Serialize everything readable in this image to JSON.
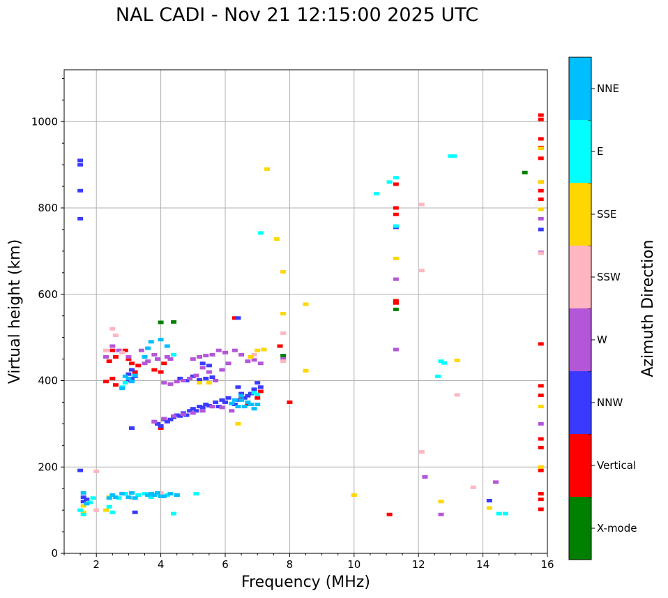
{
  "chart_data": {
    "type": "scatter",
    "title": "NAL CADI - Nov 21 12:15:00 2025 UTC",
    "xlabel": "Frequency (MHz)",
    "ylabel": "Virtual height (km)",
    "xlim": [
      1,
      16
    ],
    "ylim": [
      0,
      1120
    ],
    "xticks": [
      2,
      4,
      6,
      8,
      10,
      12,
      14,
      16
    ],
    "yticks": [
      0,
      200,
      400,
      600,
      800,
      1000
    ],
    "grid": true,
    "colorbar": {
      "label": "Azimuth Direction",
      "categories": [
        {
          "name": "X-mode",
          "color": "#008000"
        },
        {
          "name": "Vertical",
          "color": "#ff0000"
        },
        {
          "name": "NNW",
          "color": "#3a3aff"
        },
        {
          "name": "W",
          "color": "#b456d8"
        },
        {
          "name": "SSW",
          "color": "#ffb6c1"
        },
        {
          "name": "SSE",
          "color": "#ffd700"
        },
        {
          "name": "E",
          "color": "#00ffff"
        },
        {
          "name": "NNE",
          "color": "#00bfff"
        }
      ]
    },
    "series": [
      {
        "name": "X-mode",
        "points": [
          [
            4.0,
            535
          ],
          [
            4.4,
            536
          ],
          [
            7.8,
            458
          ],
          [
            15.3,
            882
          ],
          [
            11.3,
            565
          ]
        ]
      },
      {
        "name": "Vertical",
        "points": [
          [
            2.3,
            398
          ],
          [
            2.4,
            445
          ],
          [
            2.5,
            470
          ],
          [
            2.5,
            405
          ],
          [
            2.6,
            455
          ],
          [
            2.6,
            390
          ],
          [
            2.9,
            470
          ],
          [
            3.0,
            450
          ],
          [
            3.1,
            440
          ],
          [
            3.2,
            420
          ],
          [
            3.3,
            435
          ],
          [
            3.8,
            425
          ],
          [
            4.0,
            420
          ],
          [
            4.1,
            440
          ],
          [
            3.9,
            300
          ],
          [
            4.0,
            290
          ],
          [
            6.3,
            545
          ],
          [
            6.5,
            360
          ],
          [
            6.7,
            345
          ],
          [
            7.0,
            360
          ],
          [
            7.1,
            375
          ],
          [
            7.7,
            480
          ],
          [
            8.0,
            350
          ],
          [
            11.3,
            585
          ],
          [
            11.3,
            580
          ],
          [
            11.3,
            855
          ],
          [
            11.3,
            800
          ],
          [
            11.3,
            785
          ],
          [
            11.3,
            580
          ],
          [
            11.1,
            90
          ],
          [
            15.8,
            1015
          ],
          [
            15.8,
            1005
          ],
          [
            15.8,
            960
          ],
          [
            15.8,
            940
          ],
          [
            15.8,
            915
          ],
          [
            15.8,
            860
          ],
          [
            15.8,
            840
          ],
          [
            15.8,
            820
          ],
          [
            15.8,
            485
          ],
          [
            15.8,
            388
          ],
          [
            15.8,
            366
          ],
          [
            15.8,
            265
          ],
          [
            15.8,
            245
          ],
          [
            15.8,
            192
          ],
          [
            15.8,
            138
          ],
          [
            15.8,
            125
          ],
          [
            15.8,
            102
          ]
        ]
      },
      {
        "name": "NNW",
        "points": [
          [
            1.5,
            910
          ],
          [
            1.5,
            900
          ],
          [
            1.5,
            840
          ],
          [
            1.5,
            775
          ],
          [
            1.5,
            192
          ],
          [
            1.6,
            130
          ],
          [
            1.7,
            125
          ],
          [
            1.6,
            120
          ],
          [
            3.0,
            415
          ],
          [
            3.1,
            425
          ],
          [
            3.1,
            405
          ],
          [
            3.0,
            400
          ],
          [
            3.2,
            410
          ],
          [
            3.1,
            290
          ],
          [
            3.2,
            95
          ],
          [
            3.8,
            305
          ],
          [
            3.9,
            300
          ],
          [
            4.0,
            295
          ],
          [
            4.1,
            310
          ],
          [
            4.2,
            305
          ],
          [
            4.3,
            310
          ],
          [
            4.4,
            315
          ],
          [
            4.5,
            320
          ],
          [
            4.6,
            318
          ],
          [
            4.7,
            325
          ],
          [
            4.8,
            320
          ],
          [
            4.9,
            330
          ],
          [
            5.0,
            335
          ],
          [
            5.1,
            330
          ],
          [
            5.2,
            340
          ],
          [
            5.3,
            338
          ],
          [
            5.4,
            345
          ],
          [
            5.5,
            342
          ],
          [
            5.6,
            340
          ],
          [
            5.7,
            350
          ],
          [
            5.8,
            340
          ],
          [
            5.9,
            355
          ],
          [
            6.0,
            350
          ],
          [
            6.1,
            360
          ],
          [
            6.3,
            345
          ],
          [
            6.4,
            355
          ],
          [
            6.5,
            370
          ],
          [
            6.6,
            360
          ],
          [
            6.7,
            365
          ],
          [
            6.8,
            370
          ],
          [
            6.9,
            380
          ],
          [
            7.0,
            395
          ],
          [
            7.1,
            385
          ],
          [
            4.6,
            405
          ],
          [
            4.8,
            400
          ],
          [
            5.0,
            410
          ],
          [
            5.2,
            402
          ],
          [
            5.4,
            405
          ],
          [
            5.6,
            408
          ],
          [
            5.3,
            440
          ],
          [
            5.5,
            435
          ],
          [
            6.4,
            545
          ],
          [
            6.4,
            385
          ],
          [
            11.3,
            755
          ],
          [
            15.8,
            750
          ],
          [
            14.2,
            122
          ],
          [
            4.0,
            135
          ],
          [
            3.7,
            138
          ],
          [
            4.5,
            135
          ]
        ]
      },
      {
        "name": "W",
        "points": [
          [
            2.3,
            455
          ],
          [
            2.5,
            480
          ],
          [
            2.7,
            470
          ],
          [
            3.0,
            455
          ],
          [
            3.4,
            470
          ],
          [
            3.5,
            440
          ],
          [
            3.6,
            445
          ],
          [
            3.8,
            460
          ],
          [
            3.9,
            450
          ],
          [
            4.2,
            455
          ],
          [
            4.3,
            450
          ],
          [
            4.1,
            395
          ],
          [
            4.3,
            392
          ],
          [
            4.5,
            398
          ],
          [
            4.7,
            400
          ],
          [
            4.9,
            405
          ],
          [
            5.1,
            412
          ],
          [
            5.3,
            430
          ],
          [
            5.5,
            420
          ],
          [
            5.7,
            400
          ],
          [
            5.9,
            425
          ],
          [
            6.1,
            440
          ],
          [
            6.3,
            470
          ],
          [
            6.5,
            460
          ],
          [
            6.7,
            445
          ],
          [
            6.9,
            448
          ],
          [
            7.1,
            440
          ],
          [
            5.2,
            455
          ],
          [
            5.4,
            458
          ],
          [
            5.0,
            450
          ],
          [
            5.6,
            460
          ],
          [
            5.8,
            470
          ],
          [
            6.0,
            465
          ],
          [
            3.8,
            305
          ],
          [
            4.1,
            312
          ],
          [
            4.4,
            318
          ],
          [
            4.7,
            322
          ],
          [
            5.0,
            325
          ],
          [
            5.3,
            330
          ],
          [
            5.6,
            340
          ],
          [
            5.9,
            338
          ],
          [
            6.2,
            330
          ],
          [
            7.8,
            450
          ],
          [
            11.3,
            635
          ],
          [
            11.3,
            472
          ],
          [
            12.2,
            177
          ],
          [
            12.7,
            90
          ],
          [
            14.4,
            165
          ],
          [
            15.8,
            775
          ],
          [
            15.8,
            697
          ],
          [
            15.8,
            300
          ]
        ]
      },
      {
        "name": "SSW",
        "points": [
          [
            2.5,
            520
          ],
          [
            2.6,
            505
          ],
          [
            2.3,
            470
          ],
          [
            2.8,
            465
          ],
          [
            6.9,
            460
          ],
          [
            7.8,
            510
          ],
          [
            7.8,
            445
          ],
          [
            12.1,
            808
          ],
          [
            12.1,
            655
          ],
          [
            12.1,
            235
          ],
          [
            13.2,
            367
          ],
          [
            13.7,
            153
          ],
          [
            15.8,
            695
          ],
          [
            3.1,
            128
          ],
          [
            3.3,
            135
          ],
          [
            4.0,
            140
          ],
          [
            2.0,
            190
          ],
          [
            2.0,
            100
          ]
        ]
      },
      {
        "name": "SSE",
        "points": [
          [
            1.6,
            95
          ],
          [
            1.6,
            110
          ],
          [
            2.3,
            100
          ],
          [
            2.4,
            130
          ],
          [
            7.3,
            890
          ],
          [
            7.6,
            728
          ],
          [
            7.8,
            652
          ],
          [
            7.8,
            555
          ],
          [
            8.5,
            577
          ],
          [
            8.5,
            423
          ],
          [
            6.8,
            455
          ],
          [
            7.0,
            470
          ],
          [
            7.2,
            472
          ],
          [
            6.4,
            300
          ],
          [
            5.2,
            395
          ],
          [
            5.5,
            395
          ],
          [
            10.0,
            135
          ],
          [
            11.3,
            683
          ],
          [
            12.7,
            120
          ],
          [
            13.2,
            447
          ],
          [
            14.2,
            105
          ],
          [
            15.8,
            938
          ],
          [
            15.8,
            860
          ],
          [
            15.8,
            797
          ],
          [
            15.8,
            340
          ],
          [
            15.8,
            200
          ]
        ]
      },
      {
        "name": "E",
        "points": [
          [
            1.5,
            100
          ],
          [
            1.6,
            90
          ],
          [
            1.8,
            118
          ],
          [
            1.9,
            128
          ],
          [
            2.4,
            108
          ],
          [
            2.5,
            95
          ],
          [
            2.7,
            128
          ],
          [
            2.9,
            138
          ],
          [
            3.3,
            135
          ],
          [
            3.5,
            138
          ],
          [
            3.7,
            130
          ],
          [
            4.2,
            135
          ],
          [
            4.4,
            92
          ],
          [
            5.1,
            138
          ],
          [
            7.1,
            742
          ],
          [
            10.7,
            833
          ],
          [
            11.1,
            860
          ],
          [
            11.3,
            870
          ],
          [
            11.3,
            758
          ],
          [
            12.6,
            410
          ],
          [
            12.7,
            445
          ],
          [
            12.8,
            441
          ],
          [
            13.0,
            920
          ],
          [
            13.1,
            920
          ],
          [
            14.5,
            92
          ],
          [
            14.7,
            92
          ],
          [
            6.9,
            372
          ],
          [
            7.0,
            368
          ],
          [
            2.8,
            385
          ],
          [
            2.9,
            395
          ],
          [
            4.4,
            460
          ]
        ]
      },
      {
        "name": "NNE",
        "points": [
          [
            1.6,
            140
          ],
          [
            1.7,
            115
          ],
          [
            2.4,
            128
          ],
          [
            2.5,
            135
          ],
          [
            2.6,
            130
          ],
          [
            2.8,
            138
          ],
          [
            3.0,
            130
          ],
          [
            3.1,
            140
          ],
          [
            3.2,
            128
          ],
          [
            3.6,
            135
          ],
          [
            3.7,
            138
          ],
          [
            3.8,
            135
          ],
          [
            3.9,
            140
          ],
          [
            4.1,
            132
          ],
          [
            4.3,
            138
          ],
          [
            3.0,
            405
          ],
          [
            3.1,
            398
          ],
          [
            3.2,
            412
          ],
          [
            2.8,
            382
          ],
          [
            2.9,
            410
          ],
          [
            3.5,
            455
          ],
          [
            3.6,
            475
          ],
          [
            3.7,
            490
          ],
          [
            4.0,
            495
          ],
          [
            4.2,
            480
          ],
          [
            6.5,
            355
          ],
          [
            6.6,
            340
          ],
          [
            6.7,
            350
          ],
          [
            6.8,
            345
          ],
          [
            6.9,
            335
          ],
          [
            7.0,
            345
          ],
          [
            6.4,
            340
          ],
          [
            6.5,
            365
          ],
          [
            6.2,
            347
          ],
          [
            6.3,
            355
          ],
          [
            4.0,
            132
          ],
          [
            4.5,
            135
          ]
        ]
      }
    ]
  }
}
